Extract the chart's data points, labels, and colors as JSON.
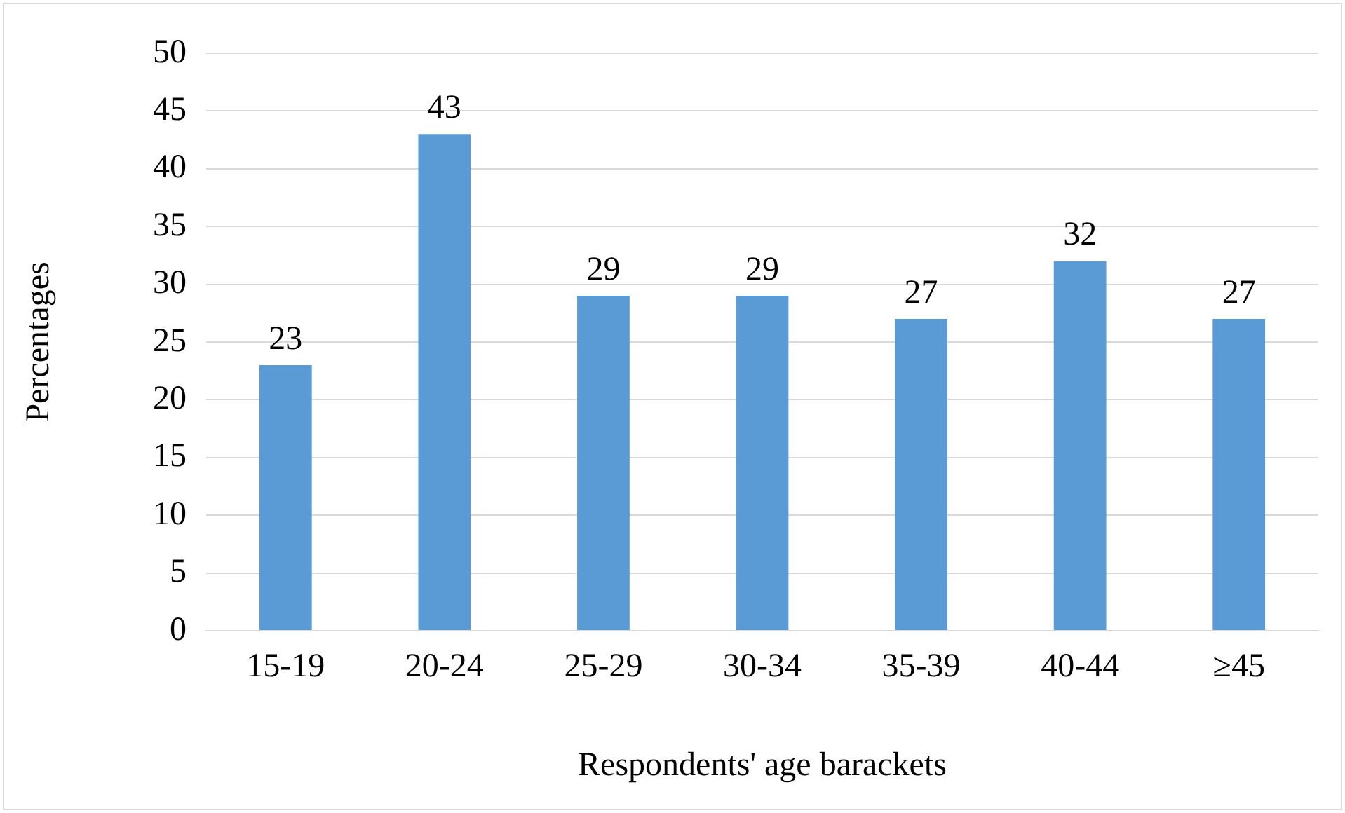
{
  "chart_data": {
    "type": "bar",
    "xlabel": "Respondents' age barackets",
    "ylabel": "Percentages",
    "categories": [
      "15-19",
      "20-24",
      "25-29",
      "30-34",
      "35-39",
      "40-44",
      "≥45"
    ],
    "values": [
      23,
      43,
      29,
      29,
      27,
      32,
      27
    ],
    "color": "#5b9bd5",
    "ylim": [
      0,
      50
    ],
    "yticks": [
      0,
      5,
      10,
      15,
      20,
      25,
      30,
      35,
      40,
      45,
      50
    ],
    "grid": "y",
    "data_labels": true
  }
}
